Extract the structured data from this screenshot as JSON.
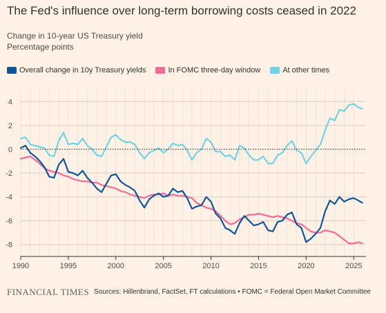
{
  "header": {
    "title": "The Fed's influence over long-term borrowing costs ceased in 2022",
    "subtitle_line1": "Change in 10-year US Treasury yield",
    "subtitle_line2": "Percentage points"
  },
  "footer": {
    "logo": "FINANCIAL TIMES",
    "source": "Sources: Hillenbrand, FactSet, FT calculations • FOMC = Federal Open Market Committee"
  },
  "colors": {
    "background": "#fff1e5",
    "overall": "#0f5499",
    "fomc": "#f06b95",
    "other": "#6fd3e3",
    "zero_line": "#33302e",
    "grid": "#d9ccc1"
  },
  "chart_data": {
    "type": "line",
    "title": "The Fed's influence over long-term borrowing costs ceased in 2022",
    "ylabel": "Percentage points",
    "ylim": [
      -9,
      5
    ],
    "xlim": [
      1990,
      2026
    ],
    "yticks": [
      4,
      2,
      0,
      -2,
      -4,
      -6,
      -8
    ],
    "ytick_labels": [
      "4",
      "2",
      "0",
      "-2",
      "-4",
      "-6",
      "-8"
    ],
    "xticks": [
      1990,
      1995,
      2000,
      2005,
      2010,
      2015,
      2020,
      2025
    ],
    "xtick_labels": [
      "1990",
      "1995",
      "2000",
      "2005",
      "2010",
      "2015",
      "2020",
      "2025"
    ],
    "legend_position": "top-left",
    "grid": true,
    "series": [
      {
        "name": "Overall change in 10y Treasury yields",
        "color": "#0f5499",
        "x": [
          1990,
          1990.5,
          1991,
          1991.5,
          1992,
          1992.5,
          1993,
          1993.5,
          1994,
          1994.5,
          1995,
          1995.5,
          1996,
          1996.5,
          1997,
          1997.5,
          1998,
          1998.5,
          1999,
          1999.5,
          2000,
          2000.5,
          2001,
          2001.5,
          2002,
          2002.5,
          2003,
          2003.5,
          2004,
          2004.5,
          2005,
          2005.5,
          2006,
          2006.5,
          2007,
          2007.5,
          2008,
          2008.5,
          2009,
          2009.5,
          2010,
          2010.5,
          2011,
          2011.5,
          2012,
          2012.5,
          2013,
          2013.5,
          2014,
          2014.5,
          2015,
          2015.5,
          2016,
          2016.5,
          2017,
          2017.5,
          2018,
          2018.5,
          2019,
          2019.5,
          2020,
          2020.5,
          2021,
          2021.5,
          2022,
          2022.5,
          2023,
          2023.5,
          2024,
          2024.5,
          2025,
          2025.5,
          2025.9
        ],
        "values": [
          0.1,
          0.3,
          -0.3,
          -0.6,
          -1.0,
          -1.5,
          -2.3,
          -2.4,
          -1.3,
          -0.8,
          -1.9,
          -2.0,
          -2.2,
          -1.8,
          -2.4,
          -2.8,
          -3.3,
          -3.6,
          -2.9,
          -2.2,
          -2.1,
          -2.7,
          -3.0,
          -3.2,
          -3.5,
          -4.3,
          -4.9,
          -4.2,
          -3.9,
          -3.7,
          -4.0,
          -3.9,
          -3.3,
          -3.6,
          -3.5,
          -4.1,
          -5.0,
          -4.8,
          -4.7,
          -4.0,
          -4.4,
          -5.4,
          -5.8,
          -6.6,
          -6.8,
          -7.1,
          -6.2,
          -5.6,
          -6.0,
          -6.4,
          -6.3,
          -6.1,
          -6.8,
          -6.9,
          -6.1,
          -6.0,
          -5.5,
          -5.3,
          -6.3,
          -6.6,
          -7.8,
          -7.5,
          -7.1,
          -6.6,
          -5.2,
          -4.3,
          -4.6,
          -4.0,
          -4.4,
          -4.2,
          -4.1,
          -4.3,
          -4.5
        ]
      },
      {
        "name": "In FOMC three-day window",
        "color": "#f06b95",
        "x": [
          1990,
          1990.5,
          1991,
          1991.5,
          1992,
          1992.5,
          1993,
          1993.5,
          1994,
          1994.5,
          1995,
          1995.5,
          1996,
          1996.5,
          1997,
          1997.5,
          1998,
          1998.5,
          1999,
          1999.5,
          2000,
          2000.5,
          2001,
          2001.5,
          2002,
          2002.5,
          2003,
          2003.5,
          2004,
          2004.5,
          2005,
          2005.5,
          2006,
          2006.5,
          2007,
          2007.5,
          2008,
          2008.5,
          2009,
          2009.5,
          2010,
          2010.5,
          2011,
          2011.5,
          2012,
          2012.5,
          2013,
          2013.5,
          2014,
          2014.5,
          2015,
          2015.5,
          2016,
          2016.5,
          2017,
          2017.5,
          2018,
          2018.5,
          2019,
          2019.5,
          2020,
          2020.5,
          2021,
          2021.5,
          2022,
          2022.5,
          2023,
          2023.5,
          2024,
          2024.5,
          2025,
          2025.5,
          2025.9
        ],
        "values": [
          -0.8,
          -0.7,
          -0.6,
          -0.9,
          -1.2,
          -1.6,
          -1.8,
          -1.9,
          -2.0,
          -2.2,
          -2.3,
          -2.5,
          -2.6,
          -2.7,
          -2.7,
          -2.8,
          -2.8,
          -3.0,
          -3.1,
          -3.2,
          -3.3,
          -3.5,
          -3.6,
          -3.8,
          -3.9,
          -4.0,
          -4.1,
          -3.9,
          -3.8,
          -3.8,
          -3.7,
          -3.9,
          -3.8,
          -3.9,
          -3.9,
          -4.0,
          -4.1,
          -4.5,
          -4.7,
          -4.9,
          -5.0,
          -5.2,
          -5.6,
          -6.0,
          -6.3,
          -6.2,
          -5.9,
          -5.7,
          -5.5,
          -5.5,
          -5.4,
          -5.5,
          -5.6,
          -5.7,
          -5.6,
          -5.7,
          -5.8,
          -6.0,
          -6.2,
          -6.3,
          -6.6,
          -6.9,
          -7.0,
          -7.0,
          -6.8,
          -6.9,
          -7.0,
          -7.3,
          -7.6,
          -7.9,
          -7.9,
          -7.8,
          -7.9
        ]
      },
      {
        "name": "At other times",
        "color": "#6fd3e3",
        "x": [
          1990,
          1990.5,
          1991,
          1991.5,
          1992,
          1992.5,
          1993,
          1993.5,
          1994,
          1994.5,
          1995,
          1995.5,
          1996,
          1996.5,
          1997,
          1997.5,
          1998,
          1998.5,
          1999,
          1999.5,
          2000,
          2000.5,
          2001,
          2001.5,
          2002,
          2002.5,
          2003,
          2003.5,
          2004,
          2004.5,
          2005,
          2005.5,
          2006,
          2006.5,
          2007,
          2007.5,
          2008,
          2008.5,
          2009,
          2009.5,
          2010,
          2010.5,
          2011,
          2011.5,
          2012,
          2012.5,
          2013,
          2013.5,
          2014,
          2014.5,
          2015,
          2015.5,
          2016,
          2016.5,
          2017,
          2017.5,
          2018,
          2018.5,
          2019,
          2019.5,
          2020,
          2020.5,
          2021,
          2021.5,
          2022,
          2022.5,
          2023,
          2023.5,
          2024,
          2024.5,
          2025,
          2025.5,
          2025.9
        ],
        "values": [
          0.9,
          1.0,
          0.4,
          0.3,
          0.2,
          0.1,
          -0.5,
          -0.6,
          0.7,
          1.4,
          0.4,
          0.5,
          0.4,
          0.9,
          0.3,
          0.0,
          -0.5,
          -0.6,
          0.2,
          1.0,
          1.2,
          0.8,
          0.6,
          0.6,
          0.4,
          -0.3,
          -0.8,
          -0.3,
          -0.1,
          0.1,
          -0.3,
          0.0,
          0.5,
          0.3,
          0.4,
          -0.1,
          -0.9,
          -0.3,
          0.0,
          0.9,
          0.6,
          -0.2,
          -0.2,
          -0.6,
          -0.5,
          -0.9,
          0.3,
          0.1,
          -0.5,
          -0.9,
          -0.9,
          -0.6,
          -1.2,
          -1.2,
          -0.5,
          -0.3,
          0.3,
          0.7,
          -0.1,
          -0.3,
          -1.2,
          -0.6,
          -0.1,
          0.4,
          1.6,
          2.6,
          2.4,
          3.3,
          3.2,
          3.7,
          3.8,
          3.5,
          3.4
        ]
      }
    ]
  }
}
